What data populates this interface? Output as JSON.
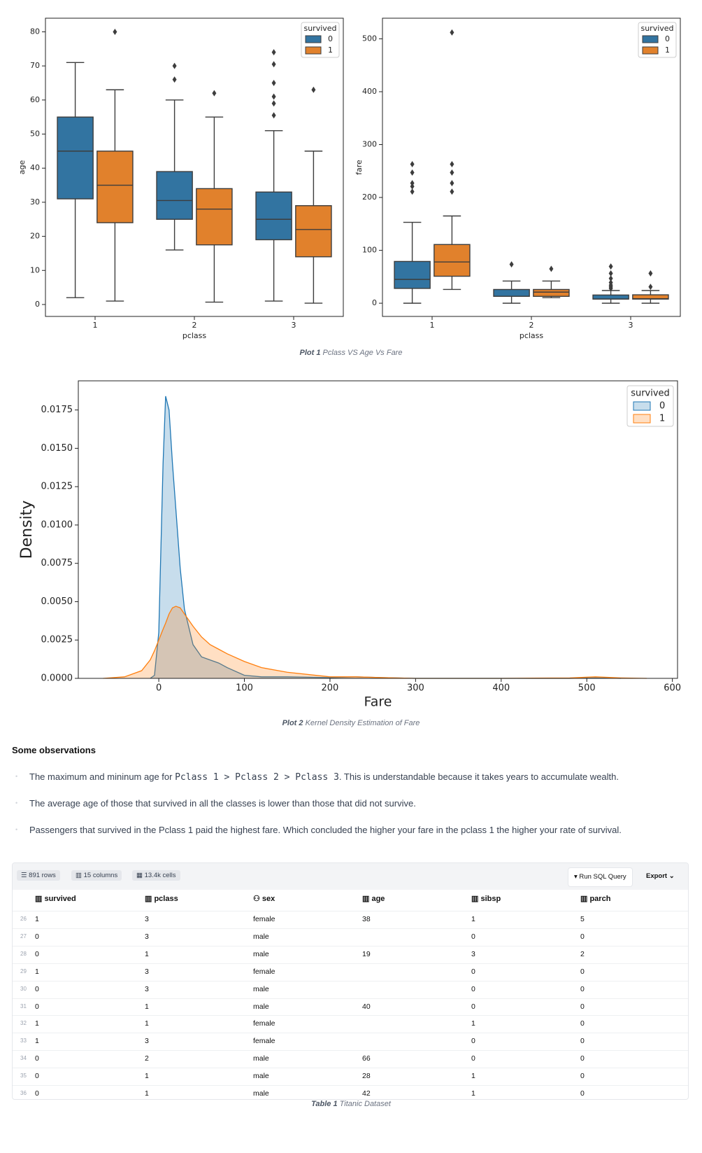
{
  "chart_data": [
    {
      "type": "box",
      "xlabel": "pclass",
      "ylabel": "age",
      "categories": [
        "1",
        "2",
        "3"
      ],
      "legend_title": "survived",
      "legend": "upper right",
      "ylim": [
        -3.5,
        84
      ],
      "yticks": [
        0,
        10,
        20,
        30,
        40,
        50,
        60,
        70,
        80
      ],
      "series": [
        {
          "name": "0",
          "color": "#3274a1",
          "boxes": [
            {
              "low": 2,
              "q1": 31,
              "median": 45,
              "q3": 55,
              "high": 71,
              "outliers": []
            },
            {
              "low": 16,
              "q1": 25,
              "median": 30.5,
              "q3": 39,
              "high": 60,
              "outliers": [
                66,
                70
              ]
            },
            {
              "low": 1,
              "q1": 19,
              "median": 25,
              "q3": 33,
              "high": 51,
              "outliers": [
                55.5,
                59,
                61,
                65,
                70.5,
                74
              ]
            }
          ]
        },
        {
          "name": "1",
          "color": "#e1812c",
          "boxes": [
            {
              "low": 1,
              "q1": 24,
              "median": 35,
              "q3": 45,
              "high": 63,
              "outliers": [
                80
              ]
            },
            {
              "low": 0.7,
              "q1": 17.5,
              "median": 28,
              "q3": 34,
              "high": 55,
              "outliers": [
                62
              ]
            },
            {
              "low": 0.4,
              "q1": 14,
              "median": 22,
              "q3": 29,
              "high": 45,
              "outliers": [
                63
              ]
            }
          ]
        }
      ]
    },
    {
      "type": "box",
      "xlabel": "pclass",
      "ylabel": "fare",
      "categories": [
        "1",
        "2",
        "3"
      ],
      "legend_title": "survived",
      "legend": "upper right",
      "ylim": [
        -25,
        539
      ],
      "yticks": [
        0,
        100,
        200,
        300,
        400,
        500
      ],
      "series": [
        {
          "name": "0",
          "color": "#3274a1",
          "boxes": [
            {
              "low": 0,
              "q1": 28,
              "median": 45,
              "q3": 79,
              "high": 153,
              "outliers": [
                211,
                221,
                227,
                247,
                263
              ]
            },
            {
              "low": 0,
              "q1": 13,
              "median": 13,
              "q3": 26,
              "high": 42,
              "outliers": [
                73.5
              ]
            },
            {
              "low": 0,
              "q1": 7.8,
              "median": 8,
              "q3": 15.5,
              "high": 24,
              "outliers": [
                27.9,
                31,
                34,
                39,
                46.9,
                56.5,
                69.5
              ]
            }
          ]
        },
        {
          "name": "1",
          "color": "#e1812c",
          "boxes": [
            {
              "low": 26,
              "q1": 51,
              "median": 78,
              "q3": 111,
              "high": 165,
              "outliers": [
                211,
                227,
                247,
                263,
                512
              ]
            },
            {
              "low": 10.5,
              "q1": 13,
              "median": 21,
              "q3": 26,
              "high": 42,
              "outliers": [
                65
              ]
            },
            {
              "low": 0,
              "q1": 7.8,
              "median": 8.5,
              "q3": 15.9,
              "high": 24,
              "outliers": [
                31,
                56.5
              ]
            }
          ]
        }
      ]
    },
    {
      "type": "kde",
      "xlabel": "Fare",
      "ylabel": "Density",
      "legend_title": "survived",
      "legend": "upper right",
      "x": [
        -65,
        -40,
        -20,
        -10,
        -5,
        0,
        5,
        8,
        12,
        16,
        20,
        25,
        30,
        40,
        50,
        60,
        70,
        80,
        100,
        120,
        150,
        200,
        230,
        260,
        300,
        400,
        480,
        510,
        540,
        570
      ],
      "xlim": [
        -94,
        606
      ],
      "xticks": [
        0,
        100,
        200,
        300,
        400,
        500,
        600
      ],
      "ylim": [
        0,
        0.0194
      ],
      "yticks": [
        {
          "value": 0,
          "label": "0.0000"
        },
        {
          "value": 0.0025,
          "label": "0.0025"
        },
        {
          "value": 0.005,
          "label": "0.0050"
        },
        {
          "value": 0.0075,
          "label": "0.0075"
        },
        {
          "value": 0.01,
          "label": "0.0100"
        },
        {
          "value": 0.0125,
          "label": "0.0125"
        },
        {
          "value": 0.015,
          "label": "0.0150"
        },
        {
          "value": 0.0175,
          "label": "0.0175"
        }
      ],
      "series": [
        {
          "name": "0",
          "color": "#1f77b4",
          "values": [
            null,
            null,
            null,
            0,
            0.0002,
            0.003,
            0.014,
            0.0184,
            0.0175,
            0.014,
            0.011,
            0.0072,
            0.0045,
            0.0022,
            0.0014,
            0.0012,
            0.001,
            0.0007,
            0.0002,
            0.0001,
            0.0001,
            5e-05,
            0.0001,
            5e-05,
            0,
            0,
            0,
            3e-05,
            0,
            null
          ]
        },
        {
          "name": "1",
          "color": "#ff7f0e",
          "values": [
            0,
            0.0001,
            0.0005,
            0.0012,
            0.0018,
            0.0025,
            0.0032,
            0.0036,
            0.0042,
            0.0046,
            0.0047,
            0.0046,
            0.0042,
            0.0034,
            0.0027,
            0.0022,
            0.0019,
            0.0016,
            0.0011,
            0.0007,
            0.0004,
            0.0001,
            0.0001,
            5e-05,
            0,
            0,
            3e-05,
            0.0001,
            3e-05,
            0
          ]
        }
      ]
    }
  ],
  "captions": [
    {
      "label": "Plot 1",
      "text": "Pclass VS Age Vs Fare"
    },
    {
      "label": "Plot 2",
      "text": "Kernel Density Estimation of Fare"
    }
  ],
  "observations": {
    "heading": "Some observations",
    "items": [
      {
        "before": "The maximum and mininum age for ",
        "code": "Pclass 1 > Pclass 2 > Pclass 3",
        "after": ". This is understandable because it takes years to accumulate wealth."
      },
      {
        "before": "The average age of those that survived in all the classes is lower than those that did not survive."
      },
      {
        "before": "Passengers that survived in the Pclass 1 paid the highest fare. Which concluded the higher your fare in the pclass 1 the higher your rate of survival."
      }
    ]
  },
  "table": {
    "toolbar": {
      "rows": "891 rows",
      "columns": "15 columns",
      "cells": "13.4k cells",
      "run": "Run SQL Query",
      "export": "Export"
    },
    "columns": [
      "survived",
      "pclass",
      "sex",
      "age",
      "sibsp",
      "parch"
    ],
    "rows": [
      {
        "index": 26,
        "cells": [
          1,
          3,
          "female",
          38,
          1,
          5
        ]
      },
      {
        "index": 27,
        "cells": [
          0,
          3,
          "male",
          null,
          0,
          0
        ]
      },
      {
        "index": 28,
        "cells": [
          0,
          1,
          "male",
          19,
          3,
          2
        ]
      },
      {
        "index": 29,
        "cells": [
          1,
          3,
          "female",
          null,
          0,
          0
        ]
      },
      {
        "index": 30,
        "cells": [
          0,
          3,
          "male",
          null,
          0,
          0
        ]
      },
      {
        "index": 31,
        "cells": [
          0,
          1,
          "male",
          40,
          0,
          0
        ]
      },
      {
        "index": 32,
        "cells": [
          1,
          1,
          "female",
          null,
          1,
          0
        ]
      },
      {
        "index": 33,
        "cells": [
          1,
          3,
          "female",
          null,
          0,
          0
        ]
      },
      {
        "index": 34,
        "cells": [
          0,
          2,
          "male",
          66,
          0,
          0
        ]
      },
      {
        "index": 35,
        "cells": [
          0,
          1,
          "male",
          28,
          1,
          0
        ]
      },
      {
        "index": 36,
        "cells": [
          0,
          1,
          "male",
          42,
          1,
          0
        ]
      }
    ],
    "caption": {
      "label": "Table 1",
      "text": "Titanic Dataset"
    }
  }
}
